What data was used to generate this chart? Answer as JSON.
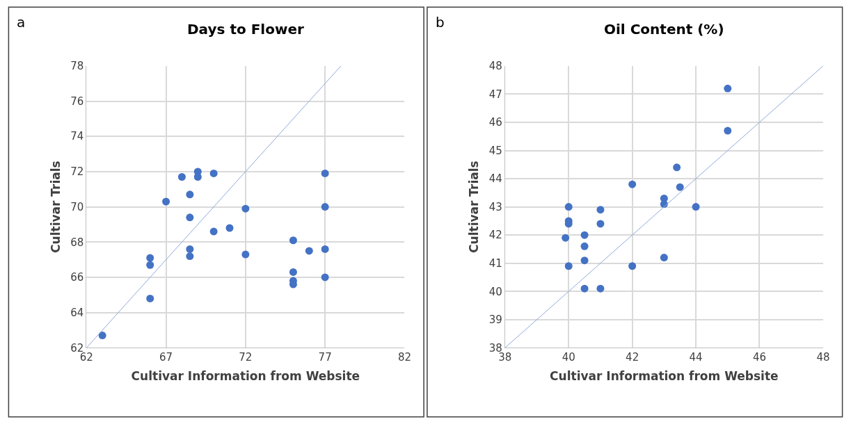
{
  "chart_data": [
    {
      "type": "scatter",
      "title": "Days to Flower",
      "xlabel": "Cultivar Information from Website",
      "ylabel": "Cultivar Trials",
      "annotations": [
        "a"
      ],
      "xlim": [
        62,
        82
      ],
      "xticks": [
        62,
        67,
        72,
        77,
        82
      ],
      "ylim": [
        62,
        78
      ],
      "yticks": [
        62,
        64,
        66,
        68,
        70,
        72,
        74,
        76,
        78
      ],
      "grid": true,
      "marker": "circle",
      "series": [
        {
          "color": "#4472c4",
          "x": [
            63,
            66,
            66,
            66,
            67,
            68,
            68.5,
            68.5,
            68.5,
            68.5,
            69,
            69,
            70,
            70,
            71,
            72,
            72,
            75,
            75,
            75,
            75,
            76,
            77,
            77,
            77,
            77
          ],
          "values": [
            62.7,
            64.8,
            66.7,
            67.1,
            70.3,
            71.7,
            70.7,
            69.4,
            67.6,
            67.2,
            72.0,
            71.7,
            71.9,
            68.6,
            68.8,
            69.9,
            67.3,
            68.1,
            66.3,
            65.8,
            65.6,
            67.5,
            71.9,
            70.0,
            67.6,
            66.0
          ]
        },
        {
          "type": "line",
          "color": "#8faadc",
          "x": [
            62,
            78
          ],
          "values": [
            62,
            78
          ],
          "marker": "none"
        }
      ]
    },
    {
      "type": "scatter",
      "title": "Oil Content (%)",
      "xlabel": "Cultivar Information from Website",
      "ylabel": "Cultivar Trials",
      "annotations": [
        "b"
      ],
      "xlim": [
        38,
        48
      ],
      "xticks": [
        38,
        40,
        42,
        44,
        46,
        48
      ],
      "ylim": [
        38,
        48
      ],
      "yticks": [
        38,
        39,
        40,
        41,
        42,
        43,
        44,
        45,
        46,
        47,
        48
      ],
      "grid": true,
      "marker": "circle",
      "series": [
        {
          "color": "#4472c4",
          "x": [
            45,
            45,
            43.4,
            43.5,
            42,
            43,
            43,
            44,
            40,
            40,
            40,
            39.9,
            40.5,
            40.5,
            40.5,
            40,
            41,
            41,
            42,
            43,
            40.5,
            41
          ],
          "values": [
            47.2,
            45.7,
            44.4,
            43.7,
            43.8,
            43.3,
            43.1,
            43.0,
            43.0,
            42.5,
            42.4,
            41.9,
            42.0,
            41.6,
            41.1,
            40.9,
            42.9,
            42.4,
            40.9,
            41.2,
            40.1,
            40.1
          ]
        },
        {
          "type": "line",
          "color": "#8faadc",
          "x": [
            38,
            48
          ],
          "values": [
            38,
            48
          ],
          "marker": "none"
        }
      ]
    }
  ]
}
